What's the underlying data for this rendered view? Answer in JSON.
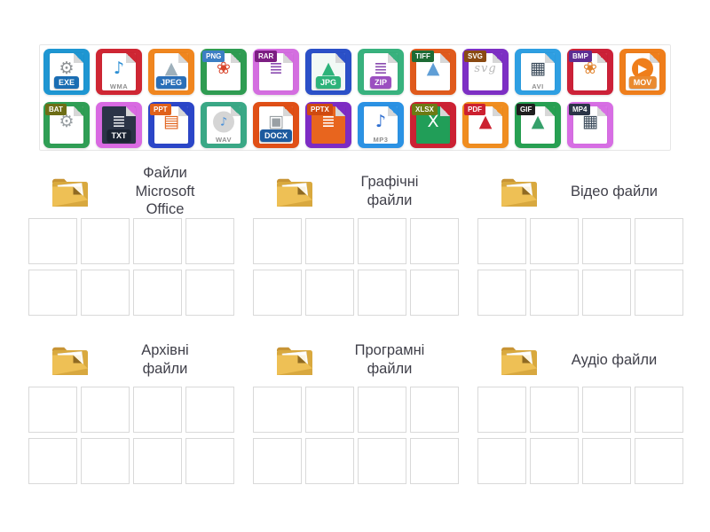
{
  "page": {
    "background": "#ffffff",
    "accent_folder_color": "#e0ad43",
    "label_text_color": "#40404a"
  },
  "tray": {
    "rows": [
      [
        {
          "name": "exe",
          "label": "EXE",
          "frame": "#1e96d2",
          "doc": "#ffffff",
          "tag_style": "banner",
          "tag_bg": "#1a6db3",
          "tag_color": "#ffffff",
          "glyph": "⚙",
          "glyph_color": "#8f9396"
        },
        {
          "name": "wma",
          "label": "WMA",
          "frame": "#cf2633",
          "doc": "#ffffff",
          "tag_style": "plain",
          "tag_bg": "",
          "tag_color": "#8e8e8e",
          "glyph": "♪",
          "glyph_color": "#2e8fd4"
        },
        {
          "name": "jpeg",
          "label": "JPEG",
          "frame": "#f0861f",
          "doc": "#ffffff",
          "tag_style": "banner",
          "tag_bg": "#2a6fb8",
          "tag_color": "#ffffff",
          "glyph": "▲",
          "glyph_color": "#9eb0bb"
        },
        {
          "name": "png",
          "label": "PNG",
          "frame": "#2f9c52",
          "doc": "#ffffff",
          "tag_style": "top",
          "tag_bg": "#3c7ec4",
          "tag_color": "#ffffff",
          "glyph": "❀",
          "glyph_color": "#d9452c"
        },
        {
          "name": "rar",
          "label": "RAR",
          "frame": "#d46ee0",
          "doc": "#ffffff",
          "tag_style": "top",
          "tag_bg": "#7c1e82",
          "tag_color": "#ffffff",
          "glyph": "≣",
          "glyph_color": "#8a4bb0"
        },
        {
          "name": "jpg",
          "label": "JPG",
          "frame": "#2b50c8",
          "doc": "#f2f9f5",
          "tag_style": "banner",
          "tag_bg": "#2db37a",
          "tag_color": "#ffffff",
          "glyph": "▲",
          "glyph_color": "#2db37a"
        },
        {
          "name": "zip",
          "label": "ZIP",
          "frame": "#38b27e",
          "doc": "#ffffff",
          "tag_style": "banner",
          "tag_bg": "#9b4fc0",
          "tag_color": "#ffffff",
          "glyph": "≣",
          "glyph_color": "#8a4bb0"
        },
        {
          "name": "tiff",
          "label": "TIFF",
          "frame": "#e05a1c",
          "doc": "#ffffff",
          "tag_style": "top",
          "tag_bg": "#1d6b35",
          "tag_color": "#ffffff",
          "glyph": "▲",
          "glyph_color": "#5f9ed6"
        },
        {
          "name": "svg",
          "label": "SVG",
          "frame": "#7d2fc4",
          "doc": "#ffffff",
          "tag_style": "top",
          "tag_bg": "#8a4a12",
          "tag_color": "#ffffff",
          "glyph": "svg",
          "glyph_color": "#b9b9b9",
          "glyph_text": true
        },
        {
          "name": "avi",
          "label": "AVI",
          "frame": "#2e9fe2",
          "doc": "#ffffff",
          "tag_style": "plain",
          "tag_bg": "",
          "tag_color": "#8e8e8e",
          "glyph": "▦",
          "glyph_color": "#3a4a5a"
        },
        {
          "name": "bmp",
          "label": "BMP",
          "frame": "#cc2138",
          "doc": "#ffffff",
          "tag_style": "top",
          "tag_bg": "#5e2d92",
          "tag_color": "#ffffff",
          "glyph": "❀",
          "glyph_color": "#e0822c"
        },
        {
          "name": "mov",
          "label": "MOV",
          "frame": "#ef7e1b",
          "doc": "#ffffff",
          "tag_style": "banner",
          "tag_bg": "#ea8a30",
          "tag_color": "#ffffff",
          "glyph": "▶",
          "glyph_color": "#ffffff",
          "glyph_circle": "#ef7e1b"
        }
      ],
      [
        {
          "name": "bat",
          "label": "BAT",
          "frame": "#2f9e55",
          "doc": "#ffffff",
          "tag_style": "top",
          "tag_bg": "#6d6d16",
          "tag_color": "#ffffff",
          "glyph": "⚙",
          "glyph_color": "#9aa0a4"
        },
        {
          "name": "txt",
          "label": "TXT",
          "frame": "#d96ae2",
          "doc": "#2b3447",
          "tag_style": "banner",
          "tag_bg": "#1b2433",
          "tag_color": "#ffffff",
          "glyph": "≣",
          "glyph_color": "#e8eaee"
        },
        {
          "name": "ppt",
          "label": "PPT",
          "frame": "#2b46c8",
          "doc": "#ffffff",
          "tag_style": "top",
          "tag_bg": "#e0611a",
          "tag_color": "#ffffff",
          "glyph": "▤",
          "glyph_color": "#e0611a"
        },
        {
          "name": "wav",
          "label": "WAV",
          "frame": "#3aa886",
          "doc": "#ffffff",
          "tag_style": "plain",
          "tag_bg": "",
          "tag_color": "#8e8e8e",
          "glyph": "♪",
          "glyph_color": "#4a90d9",
          "glyph_circle": "#d5d5d5"
        },
        {
          "name": "docx",
          "label": "DOCX",
          "frame": "#e04f16",
          "doc": "#ffffff",
          "tag_style": "banner",
          "tag_bg": "#1d5a9e",
          "tag_color": "#ffffff",
          "glyph": "▣",
          "glyph_color": "#9aa0a4"
        },
        {
          "name": "pptx",
          "label": "PPTX",
          "frame": "#7d2cc4",
          "doc": "#e8651e",
          "tag_style": "top",
          "tag_bg": "#cf4a10",
          "tag_color": "#ffffff",
          "glyph": "≣",
          "glyph_color": "#ffffff"
        },
        {
          "name": "mp3",
          "label": "MP3",
          "frame": "#2b92e4",
          "doc": "#ffffff",
          "tag_style": "plain",
          "tag_bg": "",
          "tag_color": "#8e8e8e",
          "glyph": "♪",
          "glyph_color": "#2f6fd0"
        },
        {
          "name": "xlsx",
          "label": "XLSX",
          "frame": "#cc2133",
          "doc": "#219e58",
          "tag_style": "top",
          "tag_bg": "#6d7a14",
          "tag_color": "#ffffff",
          "glyph": "X",
          "glyph_color": "#ffffff"
        },
        {
          "name": "pdf",
          "label": "PDF",
          "frame": "#f08d1f",
          "doc": "#ffffff",
          "tag_style": "top",
          "tag_bg": "#cc2030",
          "tag_color": "#ffffff",
          "glyph": "▲",
          "glyph_color": "#cc2030"
        },
        {
          "name": "gif",
          "label": "GIF",
          "frame": "#27a052",
          "doc": "#ffffff",
          "tag_style": "top",
          "tag_bg": "#1f1f1f",
          "tag_color": "#ffffff",
          "glyph": "▲",
          "glyph_color": "#35a06a"
        },
        {
          "name": "mp4",
          "label": "MP4",
          "frame": "#d76ee4",
          "doc": "#ffffff",
          "tag_style": "top",
          "tag_bg": "#2b3447",
          "tag_color": "#ffffff",
          "glyph": "▦",
          "glyph_color": "#3a4a5a"
        }
      ]
    ]
  },
  "groups": [
    {
      "name": "microsoft-office-files",
      "label": "Файли\nMicrosoft\nOffice",
      "slots": 8
    },
    {
      "name": "graphic-files",
      "label": "Графічні\nфайли",
      "slots": 8
    },
    {
      "name": "video-files",
      "label": "Відео файли",
      "slots": 8
    },
    {
      "name": "archive-files",
      "label": "Архівні\nфайли",
      "slots": 8
    },
    {
      "name": "program-files",
      "label": "Програмні\nфайли",
      "slots": 8
    },
    {
      "name": "audio-files",
      "label": "Аудіо файли",
      "slots": 8
    }
  ]
}
